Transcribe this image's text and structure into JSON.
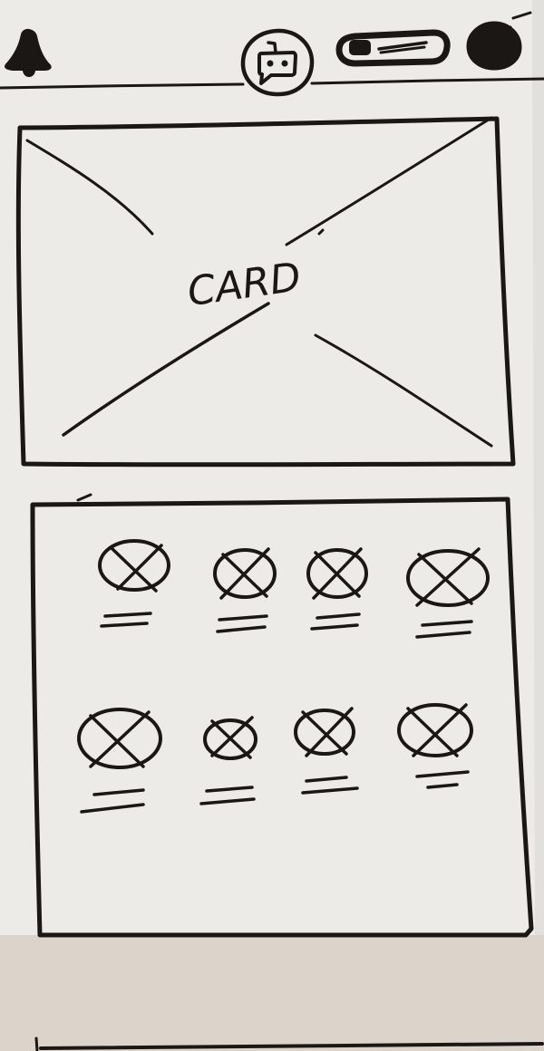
{
  "paper_color": "#ecebe8",
  "ink_color": "#1a1715",
  "background_color": "#dcd3ca",
  "header": {
    "left_icon": "bell-icon",
    "center_icon": "chatbot-icon",
    "right_toggle_icon": "toggle-icon",
    "right_icon": "compass-icon"
  },
  "card": {
    "label": "CARD"
  },
  "grid": {
    "rows": 2,
    "columns": 4,
    "item_icon": "placeholder-x-icon"
  }
}
